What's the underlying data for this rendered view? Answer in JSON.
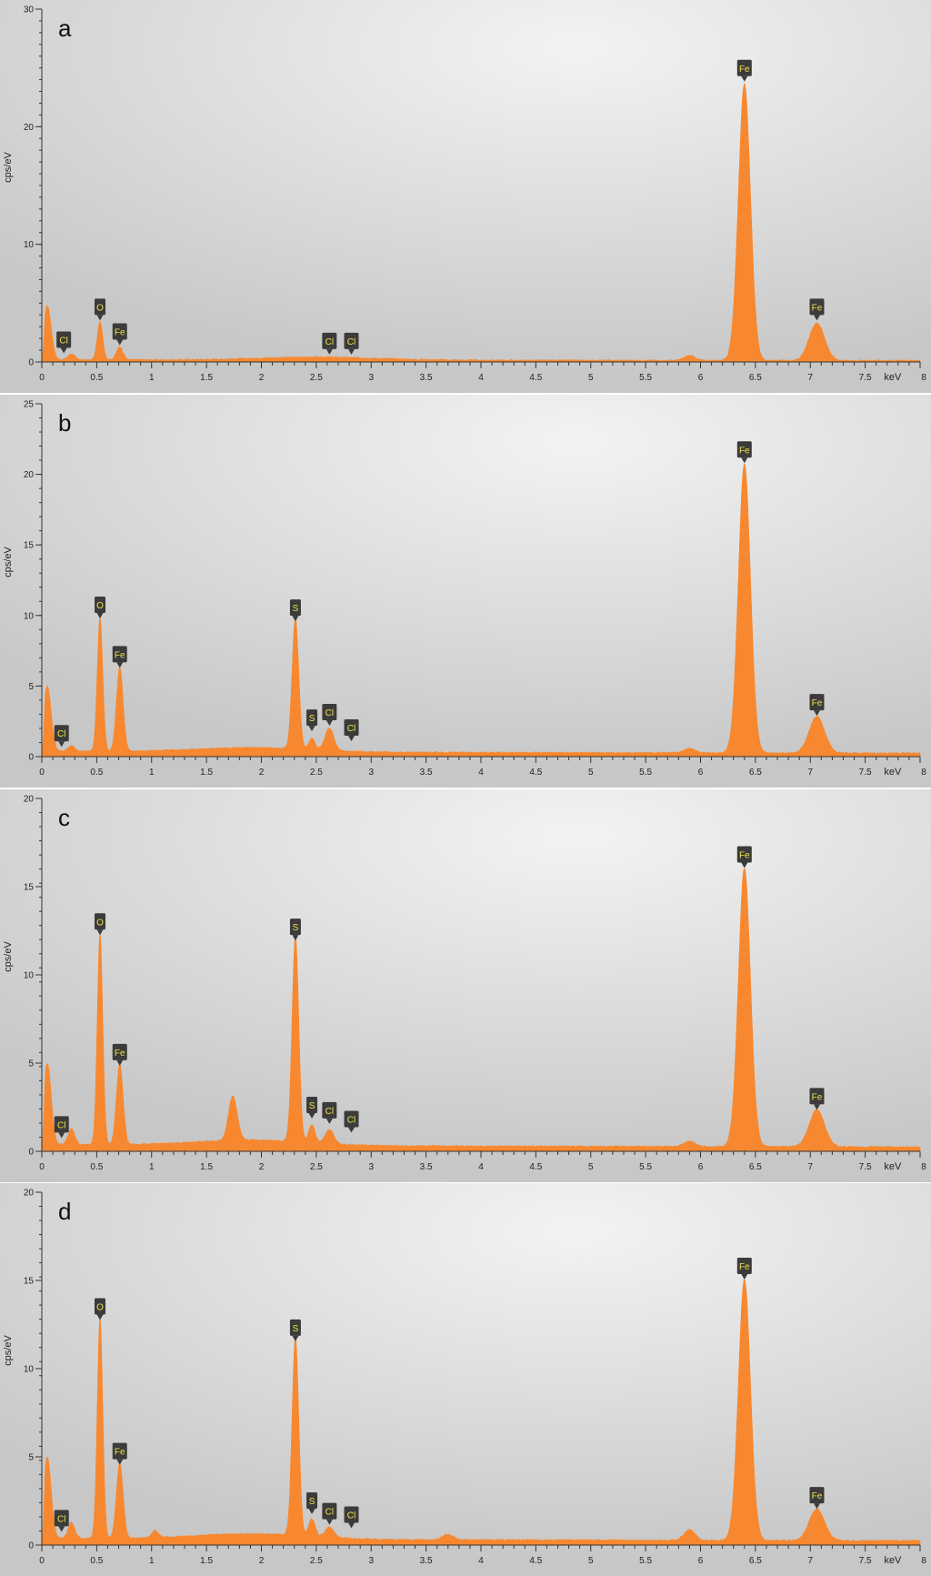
{
  "colors": {
    "spectrum": "#f7882f",
    "label_bg": "#3b3b3b",
    "label_text": "#f2e24a",
    "axis": "#333333"
  },
  "chart_data": [
    {
      "type": "area",
      "panel_label": "a",
      "ylabel": "cps/eV",
      "xlabel": "keV",
      "xlim": [
        0,
        8
      ],
      "ylim": [
        0,
        30
      ],
      "x_ticks": [
        "0",
        "0.5",
        "1",
        "1.5",
        "2",
        "2.5",
        "3",
        "3.5",
        "4",
        "4.5",
        "5",
        "5.5",
        "6",
        "6.5",
        "7",
        "7.5",
        "8"
      ],
      "y_ticks": [
        "0",
        "10",
        "20",
        "30"
      ],
      "background": 0.2,
      "shoulder": [
        {
          "center": 2.5,
          "width": 0.55,
          "height": 0.25
        }
      ],
      "peaks": [
        {
          "center": 0.05,
          "height": 4.6,
          "width": 0.035
        },
        {
          "center": 0.27,
          "height": 0.5,
          "width": 0.03
        },
        {
          "center": 0.53,
          "height": 3.2,
          "width": 0.025
        },
        {
          "center": 0.71,
          "height": 1.1,
          "width": 0.03
        },
        {
          "center": 5.9,
          "height": 0.4,
          "width": 0.05
        },
        {
          "center": 6.4,
          "height": 23.5,
          "width": 0.055
        },
        {
          "center": 7.06,
          "height": 3.2,
          "width": 0.07
        }
      ],
      "labels": [
        {
          "element": "Cl",
          "x": 0.2,
          "y": 0.5
        },
        {
          "element": "O",
          "x": 0.53,
          "y": 3.3
        },
        {
          "element": "Fe",
          "x": 0.71,
          "y": 1.2
        },
        {
          "element": "Cl",
          "x": 2.62,
          "y": 0.4
        },
        {
          "element": "Cl",
          "x": 2.82,
          "y": 0.4
        },
        {
          "element": "Fe",
          "x": 6.4,
          "y": 23.6
        },
        {
          "element": "Fe",
          "x": 7.06,
          "y": 3.3
        }
      ]
    },
    {
      "type": "area",
      "panel_label": "b",
      "ylabel": "cps/eV",
      "xlabel": "keV",
      "xlim": [
        0,
        8
      ],
      "ylim": [
        0,
        25
      ],
      "x_ticks": [
        "0",
        "0.5",
        "1",
        "1.5",
        "2",
        "2.5",
        "3",
        "3.5",
        "4",
        "4.5",
        "5",
        "5.5",
        "6",
        "6.5",
        "7",
        "7.5",
        "8"
      ],
      "y_ticks": [
        "0",
        "5",
        "10",
        "15",
        "20",
        "25"
      ],
      "background": 0.4,
      "shoulder": [
        {
          "center": 1.9,
          "width": 0.5,
          "height": 0.3
        }
      ],
      "peaks": [
        {
          "center": 0.05,
          "height": 4.6,
          "width": 0.035
        },
        {
          "center": 0.27,
          "height": 0.4,
          "width": 0.03
        },
        {
          "center": 0.53,
          "height": 9.5,
          "width": 0.025
        },
        {
          "center": 0.71,
          "height": 6.0,
          "width": 0.03
        },
        {
          "center": 2.31,
          "height": 9.3,
          "width": 0.03
        },
        {
          "center": 2.46,
          "height": 0.8,
          "width": 0.03
        },
        {
          "center": 2.62,
          "height": 1.6,
          "width": 0.04
        },
        {
          "center": 5.9,
          "height": 0.3,
          "width": 0.05
        },
        {
          "center": 6.4,
          "height": 20.5,
          "width": 0.055
        },
        {
          "center": 7.06,
          "height": 2.6,
          "width": 0.07
        }
      ],
      "labels": [
        {
          "element": "Cl",
          "x": 0.18,
          "y": 0.5
        },
        {
          "element": "O",
          "x": 0.53,
          "y": 9.6
        },
        {
          "element": "Fe",
          "x": 0.71,
          "y": 6.1
        },
        {
          "element": "S",
          "x": 2.31,
          "y": 9.4
        },
        {
          "element": "S",
          "x": 2.46,
          "y": 1.6
        },
        {
          "element": "Cl",
          "x": 2.62,
          "y": 2.0
        },
        {
          "element": "Cl",
          "x": 2.82,
          "y": 0.9
        },
        {
          "element": "Fe",
          "x": 6.4,
          "y": 20.6
        },
        {
          "element": "Fe",
          "x": 7.06,
          "y": 2.7
        }
      ]
    },
    {
      "type": "area",
      "panel_label": "c",
      "ylabel": "cps/eV",
      "xlabel": "keV",
      "xlim": [
        0,
        8
      ],
      "ylim": [
        0,
        20
      ],
      "x_ticks": [
        "0",
        "0.5",
        "1",
        "1.5",
        "2",
        "2.5",
        "3",
        "3.5",
        "4",
        "4.5",
        "5",
        "5.5",
        "6",
        "6.5",
        "7",
        "7.5",
        "8"
      ],
      "y_ticks": [
        "0",
        "5",
        "10",
        "15",
        "20"
      ],
      "background": 0.4,
      "shoulder": [
        {
          "center": 1.9,
          "width": 0.5,
          "height": 0.3
        }
      ],
      "peaks": [
        {
          "center": 0.05,
          "height": 4.6,
          "width": 0.035
        },
        {
          "center": 0.27,
          "height": 0.9,
          "width": 0.03
        },
        {
          "center": 0.53,
          "height": 12.0,
          "width": 0.025
        },
        {
          "center": 0.71,
          "height": 4.6,
          "width": 0.03
        },
        {
          "center": 1.74,
          "height": 2.5,
          "width": 0.04
        },
        {
          "center": 2.31,
          "height": 11.7,
          "width": 0.03
        },
        {
          "center": 2.46,
          "height": 1.0,
          "width": 0.03
        },
        {
          "center": 2.62,
          "height": 0.8,
          "width": 0.04
        },
        {
          "center": 5.9,
          "height": 0.3,
          "width": 0.05
        },
        {
          "center": 6.4,
          "height": 15.8,
          "width": 0.055
        },
        {
          "center": 7.06,
          "height": 2.1,
          "width": 0.07
        }
      ],
      "labels": [
        {
          "element": "Cl",
          "x": 0.18,
          "y": 0.6
        },
        {
          "element": "O",
          "x": 0.53,
          "y": 12.1
        },
        {
          "element": "Fe",
          "x": 0.71,
          "y": 4.7
        },
        {
          "element": "S",
          "x": 2.31,
          "y": 11.8
        },
        {
          "element": "S",
          "x": 2.46,
          "y": 1.7
        },
        {
          "element": "Cl",
          "x": 2.62,
          "y": 1.4
        },
        {
          "element": "Cl",
          "x": 2.82,
          "y": 0.9
        },
        {
          "element": "Fe",
          "x": 6.4,
          "y": 15.9
        },
        {
          "element": "Fe",
          "x": 7.06,
          "y": 2.2
        }
      ]
    },
    {
      "type": "area",
      "panel_label": "d",
      "ylabel": "cps/eV",
      "xlabel": "keV",
      "xlim": [
        0,
        8
      ],
      "ylim": [
        0,
        20
      ],
      "x_ticks": [
        "0",
        "0.5",
        "1",
        "1.5",
        "2",
        "2.5",
        "3",
        "3.5",
        "4",
        "4.5",
        "5",
        "5.5",
        "6",
        "6.5",
        "7",
        "7.5",
        "8"
      ],
      "y_ticks": [
        "0",
        "5",
        "10",
        "15",
        "20"
      ],
      "background": 0.4,
      "shoulder": [
        {
          "center": 1.9,
          "width": 0.5,
          "height": 0.3
        }
      ],
      "peaks": [
        {
          "center": 0.05,
          "height": 4.6,
          "width": 0.035
        },
        {
          "center": 0.27,
          "height": 0.9,
          "width": 0.03
        },
        {
          "center": 0.53,
          "height": 12.5,
          "width": 0.025
        },
        {
          "center": 0.71,
          "height": 4.3,
          "width": 0.03
        },
        {
          "center": 1.03,
          "height": 0.4,
          "width": 0.03
        },
        {
          "center": 2.31,
          "height": 11.3,
          "width": 0.03
        },
        {
          "center": 2.46,
          "height": 1.0,
          "width": 0.03
        },
        {
          "center": 2.62,
          "height": 0.6,
          "width": 0.04
        },
        {
          "center": 3.7,
          "height": 0.3,
          "width": 0.05
        },
        {
          "center": 5.9,
          "height": 0.6,
          "width": 0.05
        },
        {
          "center": 6.4,
          "height": 14.8,
          "width": 0.055
        },
        {
          "center": 7.06,
          "height": 1.8,
          "width": 0.07
        }
      ],
      "labels": [
        {
          "element": "Cl",
          "x": 0.18,
          "y": 0.6
        },
        {
          "element": "O",
          "x": 0.53,
          "y": 12.6
        },
        {
          "element": "Fe",
          "x": 0.71,
          "y": 4.4
        },
        {
          "element": "S",
          "x": 2.31,
          "y": 11.4
        },
        {
          "element": "S",
          "x": 2.46,
          "y": 1.6
        },
        {
          "element": "Cl",
          "x": 2.62,
          "y": 1.0
        },
        {
          "element": "Cl",
          "x": 2.82,
          "y": 0.8
        },
        {
          "element": "Fe",
          "x": 6.4,
          "y": 14.9
        },
        {
          "element": "Fe",
          "x": 7.06,
          "y": 1.9
        }
      ]
    }
  ]
}
